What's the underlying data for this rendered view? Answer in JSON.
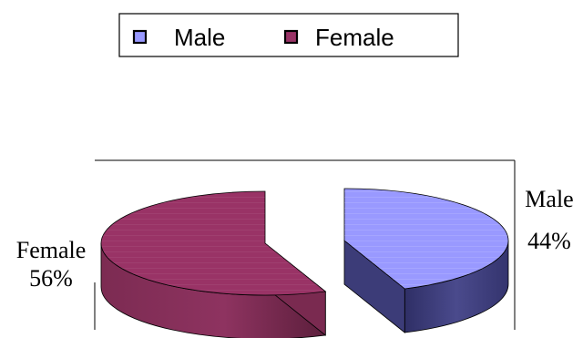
{
  "chart_data": {
    "type": "pie",
    "style": "3d-exploded",
    "legend": {
      "placement": "top",
      "entries": [
        {
          "label": "Male",
          "color": "#9999ff"
        },
        {
          "label": "Female",
          "color": "#993366"
        }
      ]
    },
    "slices": [
      {
        "label": "Male",
        "value": 44,
        "value_label": "44%",
        "color": "#9999ff",
        "side_color": "#3c3c78"
      },
      {
        "label": "Female",
        "value": 56,
        "value_label": "56%",
        "color": "#993366",
        "side_color": "#7a2a50"
      }
    ]
  }
}
